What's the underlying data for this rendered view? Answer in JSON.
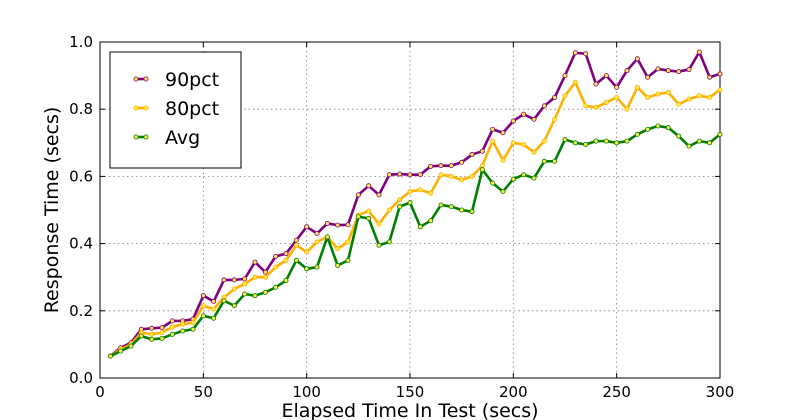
{
  "chart_data": {
    "type": "line",
    "title": "",
    "xlabel": "Elapsed Time In Test (secs)",
    "ylabel": "Response Time (secs)",
    "xlim": [
      0,
      300
    ],
    "ylim": [
      0.0,
      1.0
    ],
    "xticks": [
      0,
      50,
      100,
      150,
      200,
      250,
      300
    ],
    "xtick_labels": [
      "0",
      "50",
      "100",
      "150",
      "200",
      "250",
      "300"
    ],
    "yticks": [
      0.0,
      0.2,
      0.4,
      0.6,
      0.8,
      1.0
    ],
    "ytick_labels": [
      "0.0",
      "0.2",
      "0.4",
      "0.6",
      "0.8",
      "1.0"
    ],
    "grid": true,
    "legend_position": "top-left",
    "x": [
      5,
      10,
      15,
      20,
      25,
      30,
      35,
      40,
      45,
      50,
      55,
      60,
      65,
      70,
      75,
      80,
      85,
      90,
      95,
      100,
      105,
      110,
      115,
      120,
      125,
      130,
      135,
      140,
      145,
      150,
      155,
      160,
      165,
      170,
      175,
      180,
      185,
      190,
      195,
      200,
      205,
      210,
      215,
      220,
      225,
      230,
      235,
      240,
      245,
      250,
      255,
      260,
      265,
      270,
      275,
      280,
      285,
      290,
      295,
      300
    ],
    "series": [
      {
        "name": "90pct",
        "color": "#800080",
        "values": [
          0.065,
          0.09,
          0.105,
          0.145,
          0.148,
          0.15,
          0.17,
          0.17,
          0.175,
          0.245,
          0.228,
          0.292,
          0.292,
          0.295,
          0.345,
          0.315,
          0.362,
          0.37,
          0.41,
          0.45,
          0.43,
          0.46,
          0.455,
          0.456,
          0.545,
          0.572,
          0.545,
          0.605,
          0.607,
          0.605,
          0.605,
          0.63,
          0.632,
          0.632,
          0.642,
          0.665,
          0.675,
          0.74,
          0.73,
          0.765,
          0.785,
          0.77,
          0.81,
          0.835,
          0.9,
          0.968,
          0.965,
          0.875,
          0.9,
          0.865,
          0.915,
          0.95,
          0.895,
          0.92,
          0.915,
          0.912,
          0.918,
          0.97,
          0.895,
          0.905
        ]
      },
      {
        "name": "80pct",
        "color": "#FFB000",
        "values": [
          0.065,
          0.085,
          0.1,
          0.135,
          0.13,
          0.135,
          0.152,
          0.16,
          0.165,
          0.215,
          0.205,
          0.24,
          0.265,
          0.28,
          0.3,
          0.3,
          0.33,
          0.35,
          0.395,
          0.375,
          0.405,
          0.42,
          0.385,
          0.405,
          0.485,
          0.497,
          0.458,
          0.5,
          0.53,
          0.555,
          0.56,
          0.55,
          0.605,
          0.6,
          0.59,
          0.6,
          0.632,
          0.705,
          0.648,
          0.7,
          0.695,
          0.672,
          0.705,
          0.77,
          0.84,
          0.88,
          0.81,
          0.805,
          0.82,
          0.835,
          0.8,
          0.865,
          0.835,
          0.845,
          0.85,
          0.815,
          0.83,
          0.84,
          0.835,
          0.858
        ]
      },
      {
        "name": "Avg",
        "color": "#008000",
        "values": [
          0.065,
          0.08,
          0.095,
          0.125,
          0.115,
          0.118,
          0.13,
          0.14,
          0.145,
          0.185,
          0.178,
          0.23,
          0.215,
          0.25,
          0.245,
          0.255,
          0.27,
          0.29,
          0.35,
          0.325,
          0.33,
          0.42,
          0.335,
          0.35,
          0.48,
          0.475,
          0.395,
          0.405,
          0.51,
          0.522,
          0.45,
          0.468,
          0.515,
          0.51,
          0.5,
          0.495,
          0.62,
          0.58,
          0.555,
          0.592,
          0.605,
          0.595,
          0.645,
          0.645,
          0.71,
          0.7,
          0.695,
          0.705,
          0.705,
          0.7,
          0.705,
          0.725,
          0.74,
          0.75,
          0.745,
          0.72,
          0.69,
          0.705,
          0.7,
          0.725
        ]
      }
    ]
  }
}
